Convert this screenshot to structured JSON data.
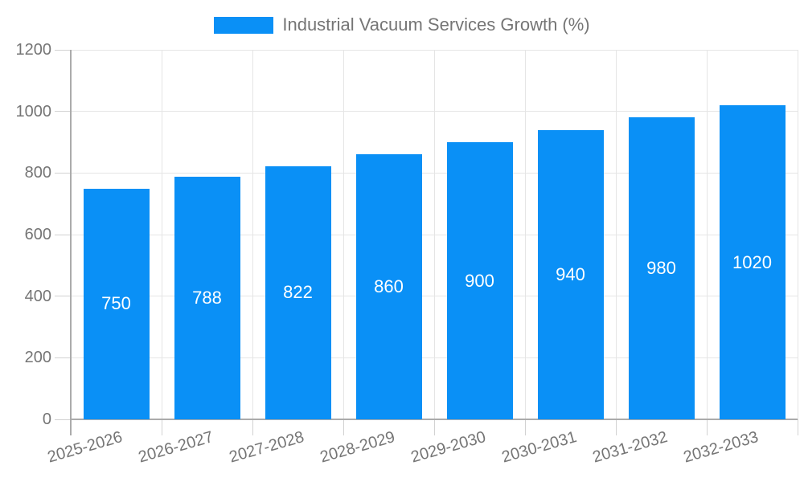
{
  "chart_data": {
    "type": "bar",
    "title": "Industrial Vacuum Services Growth (%)",
    "categories": [
      "2025-2026",
      "2026-2027",
      "2027-2028",
      "2028-2029",
      "2029-2030",
      "2030-2031",
      "2031-2032",
      "2032-2033"
    ],
    "values": [
      750,
      788,
      822,
      860,
      900,
      940,
      980,
      1020
    ],
    "value_labels": [
      "750",
      "788",
      "822",
      "860",
      "900",
      "940",
      "980",
      "1020"
    ],
    "xlabel": "",
    "ylabel": "",
    "ylim": [
      0,
      1200
    ],
    "y_ticks": [
      0,
      200,
      400,
      600,
      800,
      1000,
      1200
    ],
    "y_tick_labels": [
      "0",
      "200",
      "400",
      "600",
      "800",
      "1000",
      "1200"
    ],
    "grid": true,
    "legend_position": "top",
    "colors": {
      "bar": "#0a90f6",
      "value_label": "#ffffff",
      "axis_text": "#757575",
      "gridline": "#e5e5e5",
      "axis_line": "#ababab",
      "background": "#ffffff"
    }
  }
}
